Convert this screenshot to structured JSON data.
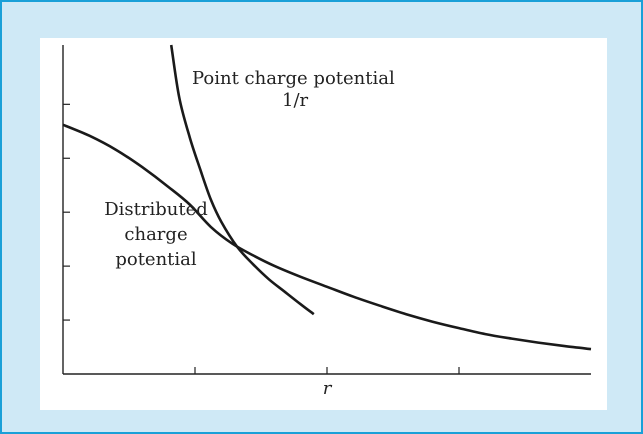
{
  "chart_data": {
    "type": "line",
    "title": "",
    "xlabel": "r",
    "ylabel": "",
    "x_ticks": 3,
    "y_ticks": 5,
    "series": [
      {
        "name": "Point charge potential 1/r",
        "x": [
          2.05,
          2.2,
          2.4,
          2.6,
          2.8,
          3.0,
          3.3,
          3.6,
          3.9,
          4.2,
          4.5,
          4.75
        ],
        "y": [
          6.6,
          5.55,
          4.75,
          4.1,
          3.5,
          3.05,
          2.55,
          2.2,
          1.9,
          1.65,
          1.4,
          1.2
        ]
      },
      {
        "name": "Distributed charge potential",
        "x": [
          0,
          0.5,
          1.0,
          1.5,
          2.0,
          2.4,
          2.8,
          3.2,
          3.6,
          4.0,
          4.5,
          5.0,
          5.5,
          6.0,
          6.5,
          7.0,
          7.5,
          8.0,
          8.5,
          9.0,
          9.5,
          10.0
        ],
        "y": [
          5.0,
          4.78,
          4.5,
          4.15,
          3.75,
          3.4,
          2.95,
          2.62,
          2.38,
          2.17,
          1.95,
          1.75,
          1.55,
          1.37,
          1.2,
          1.05,
          0.92,
          0.8,
          0.71,
          0.63,
          0.56,
          0.5
        ]
      }
    ],
    "xlim": [
      0,
      10
    ],
    "ylim": [
      0,
      6.6
    ],
    "annotations": [
      {
        "lines": [
          "Point charge potential",
          "1/r"
        ],
        "series": 0
      },
      {
        "lines": [
          "Distributed",
          "charge",
          "potential"
        ],
        "series": 1
      }
    ],
    "colors": {
      "frame": "#cfe9f6",
      "border": "#1aa0d8",
      "curve": "#1a1a1a"
    }
  }
}
